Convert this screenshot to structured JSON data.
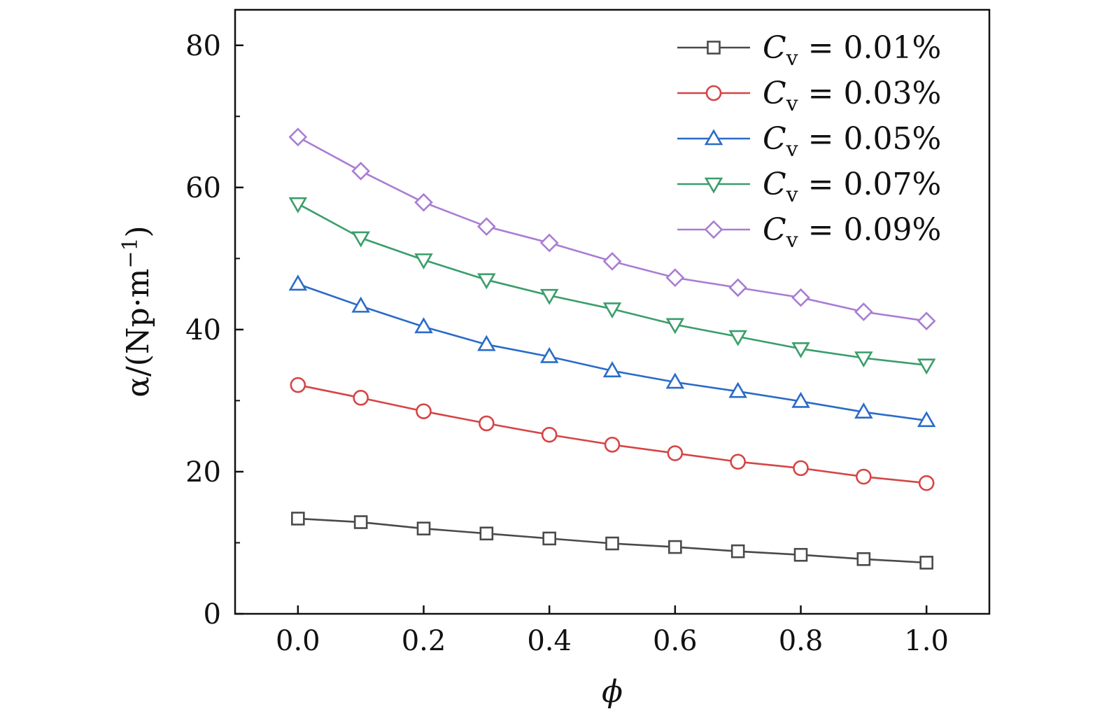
{
  "chart_data": {
    "type": "line",
    "xlabel": "ϕ",
    "ylabel_parts": {
      "main": "α/(Np·m",
      "sup": "−1",
      "close": ")"
    },
    "xlim": [
      -0.1,
      1.1
    ],
    "ylim": [
      0,
      85
    ],
    "xticks": [
      "0.0",
      "0.2",
      "0.4",
      "0.6",
      "0.8",
      "1.0"
    ],
    "xtick_values": [
      0.0,
      0.2,
      0.4,
      0.6,
      0.8,
      1.0
    ],
    "yticks": [
      "0",
      "20",
      "40",
      "60",
      "80"
    ],
    "ytick_values": [
      0,
      20,
      40,
      60,
      80
    ],
    "legend_placement": "top-right",
    "x": [
      0.0,
      0.1,
      0.2,
      0.3,
      0.4,
      0.5,
      0.6,
      0.7,
      0.8,
      0.9,
      1.0
    ],
    "series": [
      {
        "name": "0.01%",
        "legend_var": "C",
        "legend_sub": "v",
        "color": "#4a4a4a",
        "marker": "square",
        "values": [
          13.4,
          12.9,
          12.0,
          11.3,
          10.6,
          9.9,
          9.4,
          8.8,
          8.3,
          7.7,
          7.2
        ]
      },
      {
        "name": "0.03%",
        "legend_var": "C",
        "legend_sub": "v",
        "color": "#d64545",
        "marker": "circle",
        "values": [
          32.2,
          30.4,
          28.5,
          26.8,
          25.2,
          23.8,
          22.6,
          21.4,
          20.5,
          19.3,
          18.4
        ]
      },
      {
        "name": "0.05%",
        "legend_var": "C",
        "legend_sub": "v",
        "color": "#2a6bc9",
        "marker": "triangle-up",
        "values": [
          46.4,
          43.3,
          40.4,
          37.9,
          36.2,
          34.2,
          32.6,
          31.3,
          29.9,
          28.4,
          27.2
        ]
      },
      {
        "name": "0.07%",
        "legend_var": "C",
        "legend_sub": "v",
        "color": "#3a9e6a",
        "marker": "triangle-down",
        "values": [
          57.7,
          52.9,
          49.8,
          47.0,
          44.8,
          42.9,
          40.7,
          39.0,
          37.3,
          36.0,
          35.0
        ]
      },
      {
        "name": "0.09%",
        "legend_var": "C",
        "legend_sub": "v",
        "color": "#a97dd3",
        "marker": "diamond",
        "values": [
          67.1,
          62.3,
          57.9,
          54.5,
          52.2,
          49.6,
          47.3,
          45.9,
          44.5,
          42.5,
          41.2
        ]
      }
    ]
  }
}
